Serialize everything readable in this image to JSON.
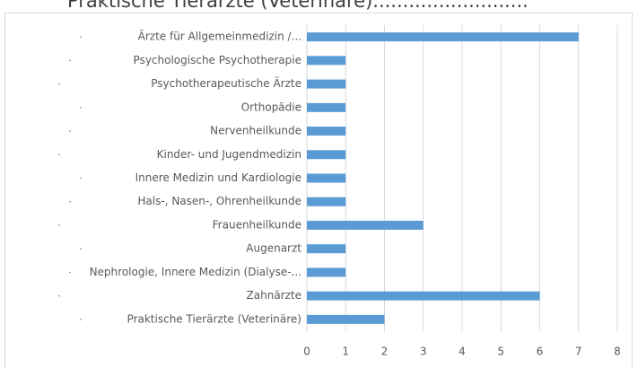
{
  "chart_data": {
    "type": "bar",
    "orientation": "horizontal",
    "title": "Praktische Tierärzte (Veterinäre)..........................",
    "categories": [
      "Ärzte für Allgemeinmedizin /...",
      "Psychologische Psychotherapie",
      "Psychotherapeutische Ärzte",
      "Orthopädie",
      "Nervenheilkunde",
      "Kinder- und Jugendmedizin",
      "Innere Medizin und Kardiologie",
      "Hals-, Nasen-, Ohrenheilkunde",
      "Frauenheilkunde",
      "Augenarzt",
      "Nephrologie, Innere Medizin (Dialyse-...",
      "Zahnärzte",
      "Praktische Tierärzte (Veterinäre)"
    ],
    "values": [
      7,
      1,
      1,
      1,
      1,
      1,
      1,
      1,
      3,
      1,
      1,
      6,
      2
    ],
    "color": "#5b9bd5",
    "xlim": [
      0,
      8
    ],
    "xticks": [
      0,
      1,
      2,
      3,
      4,
      5,
      6,
      7,
      8
    ],
    "grid": true
  }
}
